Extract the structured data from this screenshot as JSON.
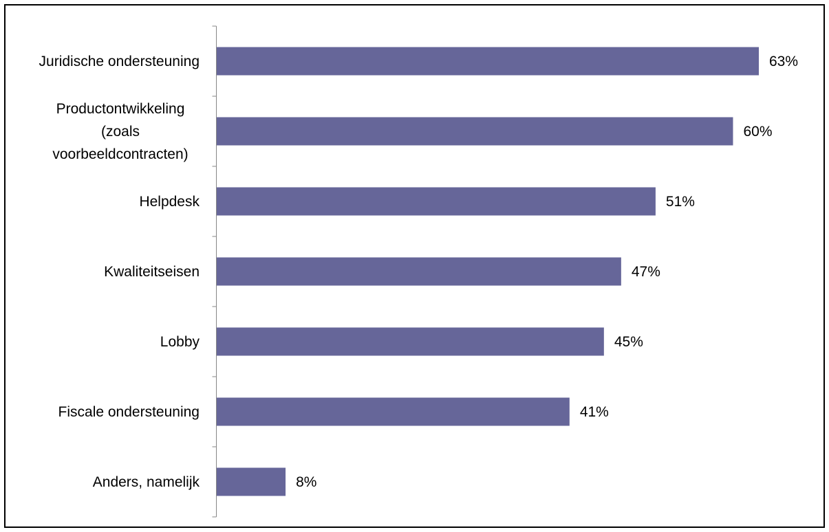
{
  "chart_data": {
    "type": "bar",
    "orientation": "horizontal",
    "categories": [
      "Juridische ondersteuning",
      "Productontwikkeling (zoals voorbeeldcontracten)",
      "Helpdesk",
      "Kwaliteitseisen",
      "Lobby",
      "Fiscale ondersteuning",
      "Anders, namelijk"
    ],
    "category_lines": [
      [
        "Juridische ondersteuning"
      ],
      [
        "Productontwikkeling",
        "(zoals",
        "voorbeeldcontracten)"
      ],
      [
        "Helpdesk"
      ],
      [
        "Kwaliteitseisen"
      ],
      [
        "Lobby"
      ],
      [
        "Fiscale ondersteuning"
      ],
      [
        "Anders, namelijk"
      ]
    ],
    "values": [
      63,
      60,
      51,
      47,
      45,
      41,
      8
    ],
    "value_labels": [
      "63%",
      "60%",
      "51%",
      "47%",
      "45%",
      "41%",
      "8%"
    ],
    "unit": "%",
    "xlim": [
      0,
      63
    ],
    "bar_color": "#666699",
    "grid": false,
    "legend": "none"
  }
}
